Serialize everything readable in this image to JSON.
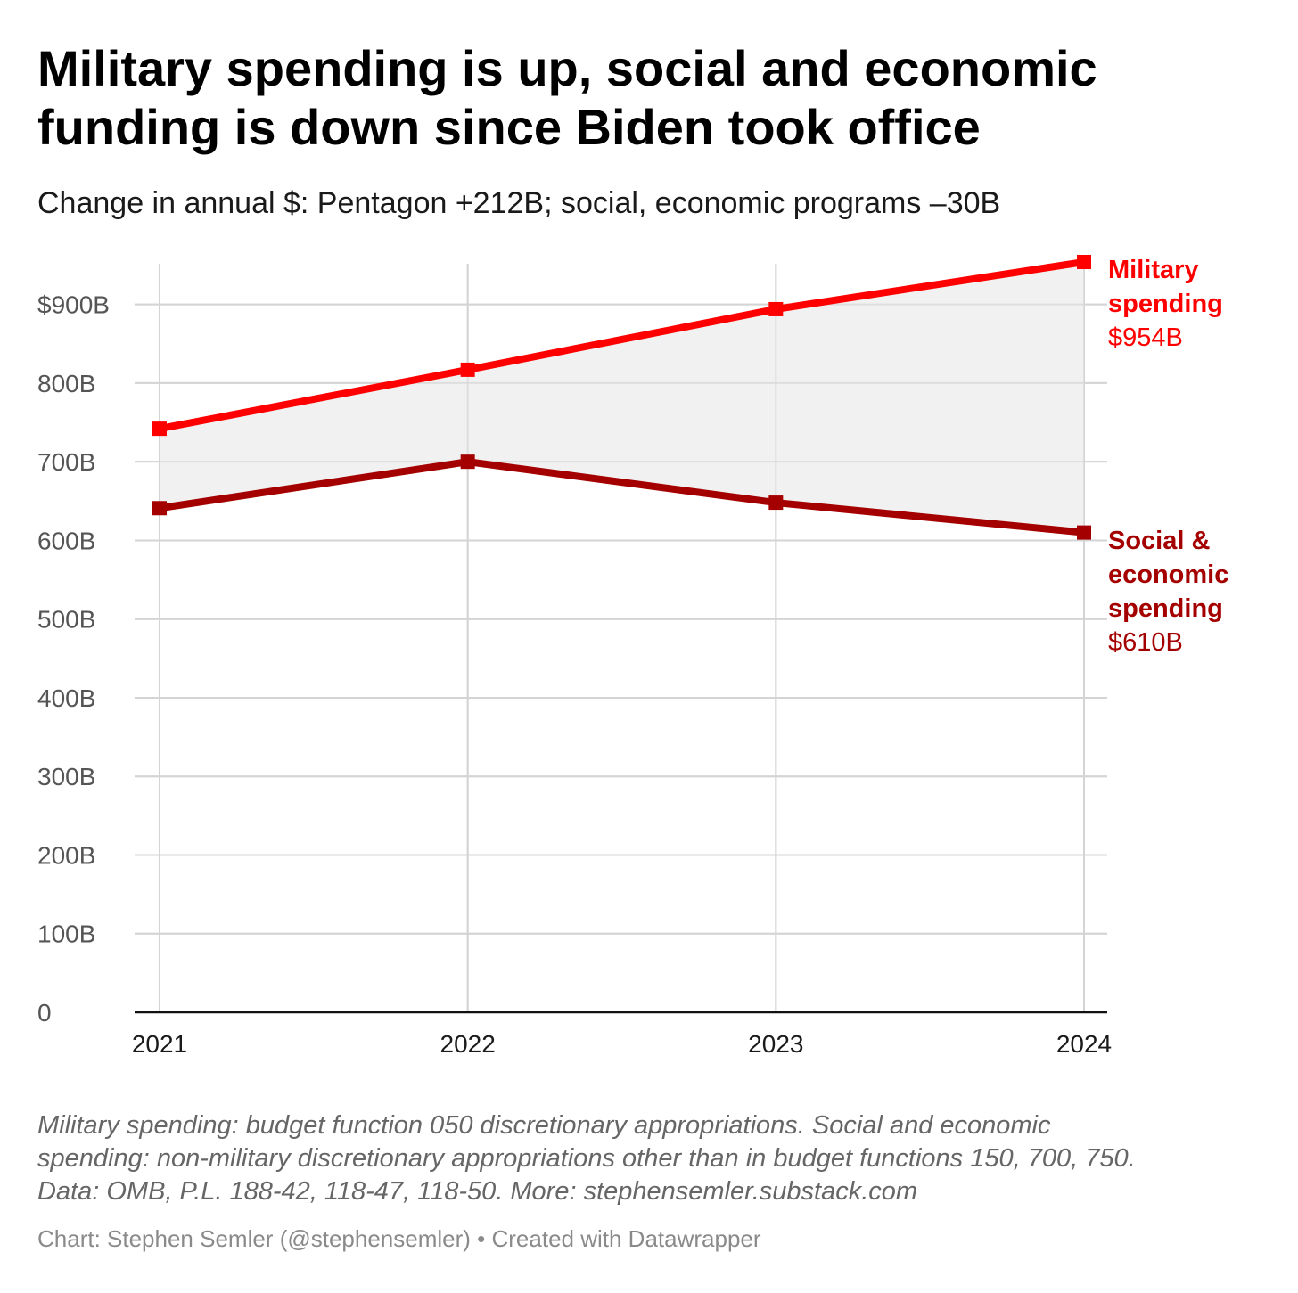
{
  "header": {
    "title": "Military spending is up, social and economic funding is down since Biden took office",
    "subtitle": "Change in annual $: Pentagon +212B; social, economic programs –30B"
  },
  "chart_data": {
    "type": "area",
    "x": [
      "2021",
      "2022",
      "2023",
      "2024"
    ],
    "ylim": [
      0,
      954
    ],
    "y_ticks": [
      0,
      100,
      200,
      300,
      400,
      500,
      600,
      700,
      800,
      900
    ],
    "y_tick_labels": [
      "0",
      "100B",
      "200B",
      "300B",
      "400B",
      "500B",
      "600B",
      "700B",
      "800B",
      "$900B"
    ],
    "grid": true,
    "shaded_between_series": true,
    "shade_color": "#efefef",
    "series": [
      {
        "label_lines": [
          "Military",
          "spending"
        ],
        "value_label": "$954B",
        "color": "#ff0000",
        "values": [
          742,
          817,
          894,
          954
        ]
      },
      {
        "label_lines": [
          "Social &",
          "economic",
          "spending"
        ],
        "value_label": "$610B",
        "color": "#a50000",
        "values": [
          641,
          700,
          648,
          610
        ]
      }
    ]
  },
  "notes": {
    "line1": "Military spending: budget function 050 discretionary appropriations. Social and economic",
    "line2": "spending: non-military discretionary appropriations other than in budget functions 150, 700, 750.",
    "line3": "Data: OMB, P.L. 188-42, 118-47, 118-50. More: stephensemler.substack.com"
  },
  "credit": "Chart: Stephen Semler (@stephensemler) • Created with Datawrapper"
}
